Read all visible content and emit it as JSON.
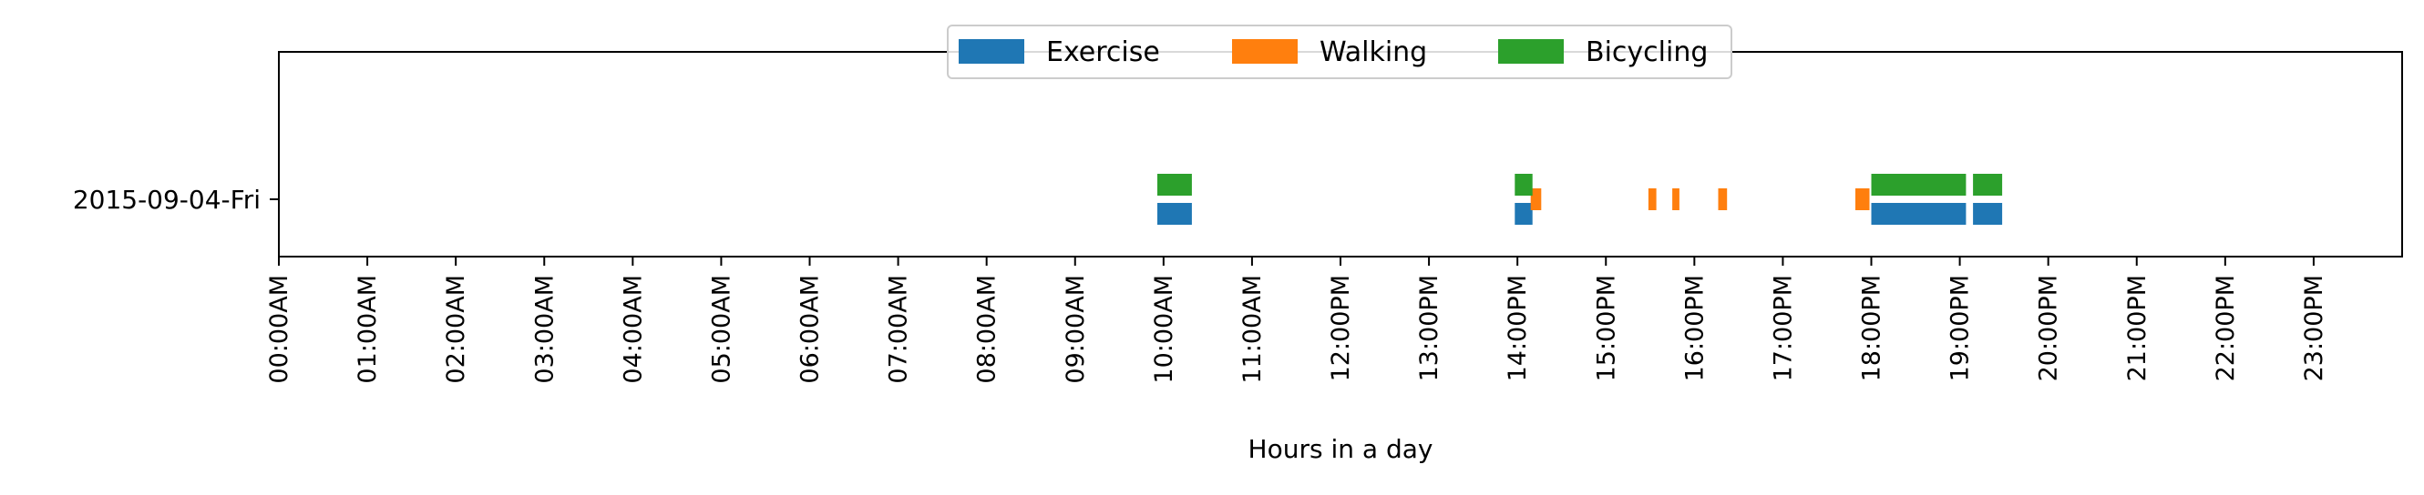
{
  "chart_data": {
    "type": "timeline",
    "title": "",
    "xlabel": "Hours in a day",
    "ylabel": "",
    "xlim": [
      0,
      24
    ],
    "x_unit": "hour of day",
    "grid": false,
    "legend": {
      "placement": "top-center",
      "entries": [
        "Exercise",
        "Walking",
        "Bicycling"
      ]
    },
    "x_tick_labels": [
      "00:00AM",
      "01:00AM",
      "02:00AM",
      "03:00AM",
      "04:00AM",
      "05:00AM",
      "06:00AM",
      "07:00AM",
      "08:00AM",
      "09:00AM",
      "10:00AM",
      "11:00AM",
      "12:00PM",
      "13:00PM",
      "14:00PM",
      "15:00PM",
      "16:00PM",
      "17:00PM",
      "18:00PM",
      "19:00PM",
      "20:00PM",
      "21:00PM",
      "22:00PM",
      "23:00PM"
    ],
    "categories": [
      "2015-09-04-Fri"
    ],
    "series": [
      {
        "name": "Exercise",
        "color": "#1f77b4",
        "lane": "lower",
        "intervals": [
          {
            "start": 9.93,
            "end": 10.32
          },
          {
            "start": 13.97,
            "end": 14.17
          },
          {
            "start": 18.0,
            "end": 19.07
          },
          {
            "start": 19.15,
            "end": 19.48
          }
        ]
      },
      {
        "name": "Walking",
        "color": "#ff7f0e",
        "lane": "middle",
        "intervals": [
          {
            "start": 14.15,
            "end": 14.27
          },
          {
            "start": 15.48,
            "end": 15.57
          },
          {
            "start": 15.75,
            "end": 15.83
          },
          {
            "start": 16.27,
            "end": 16.37
          },
          {
            "start": 17.82,
            "end": 17.98
          }
        ]
      },
      {
        "name": "Bicycling",
        "color": "#2ca02c",
        "lane": "upper",
        "intervals": [
          {
            "start": 9.93,
            "end": 10.32
          },
          {
            "start": 13.97,
            "end": 14.17
          },
          {
            "start": 18.0,
            "end": 19.07
          },
          {
            "start": 19.15,
            "end": 19.48
          }
        ]
      }
    ]
  }
}
